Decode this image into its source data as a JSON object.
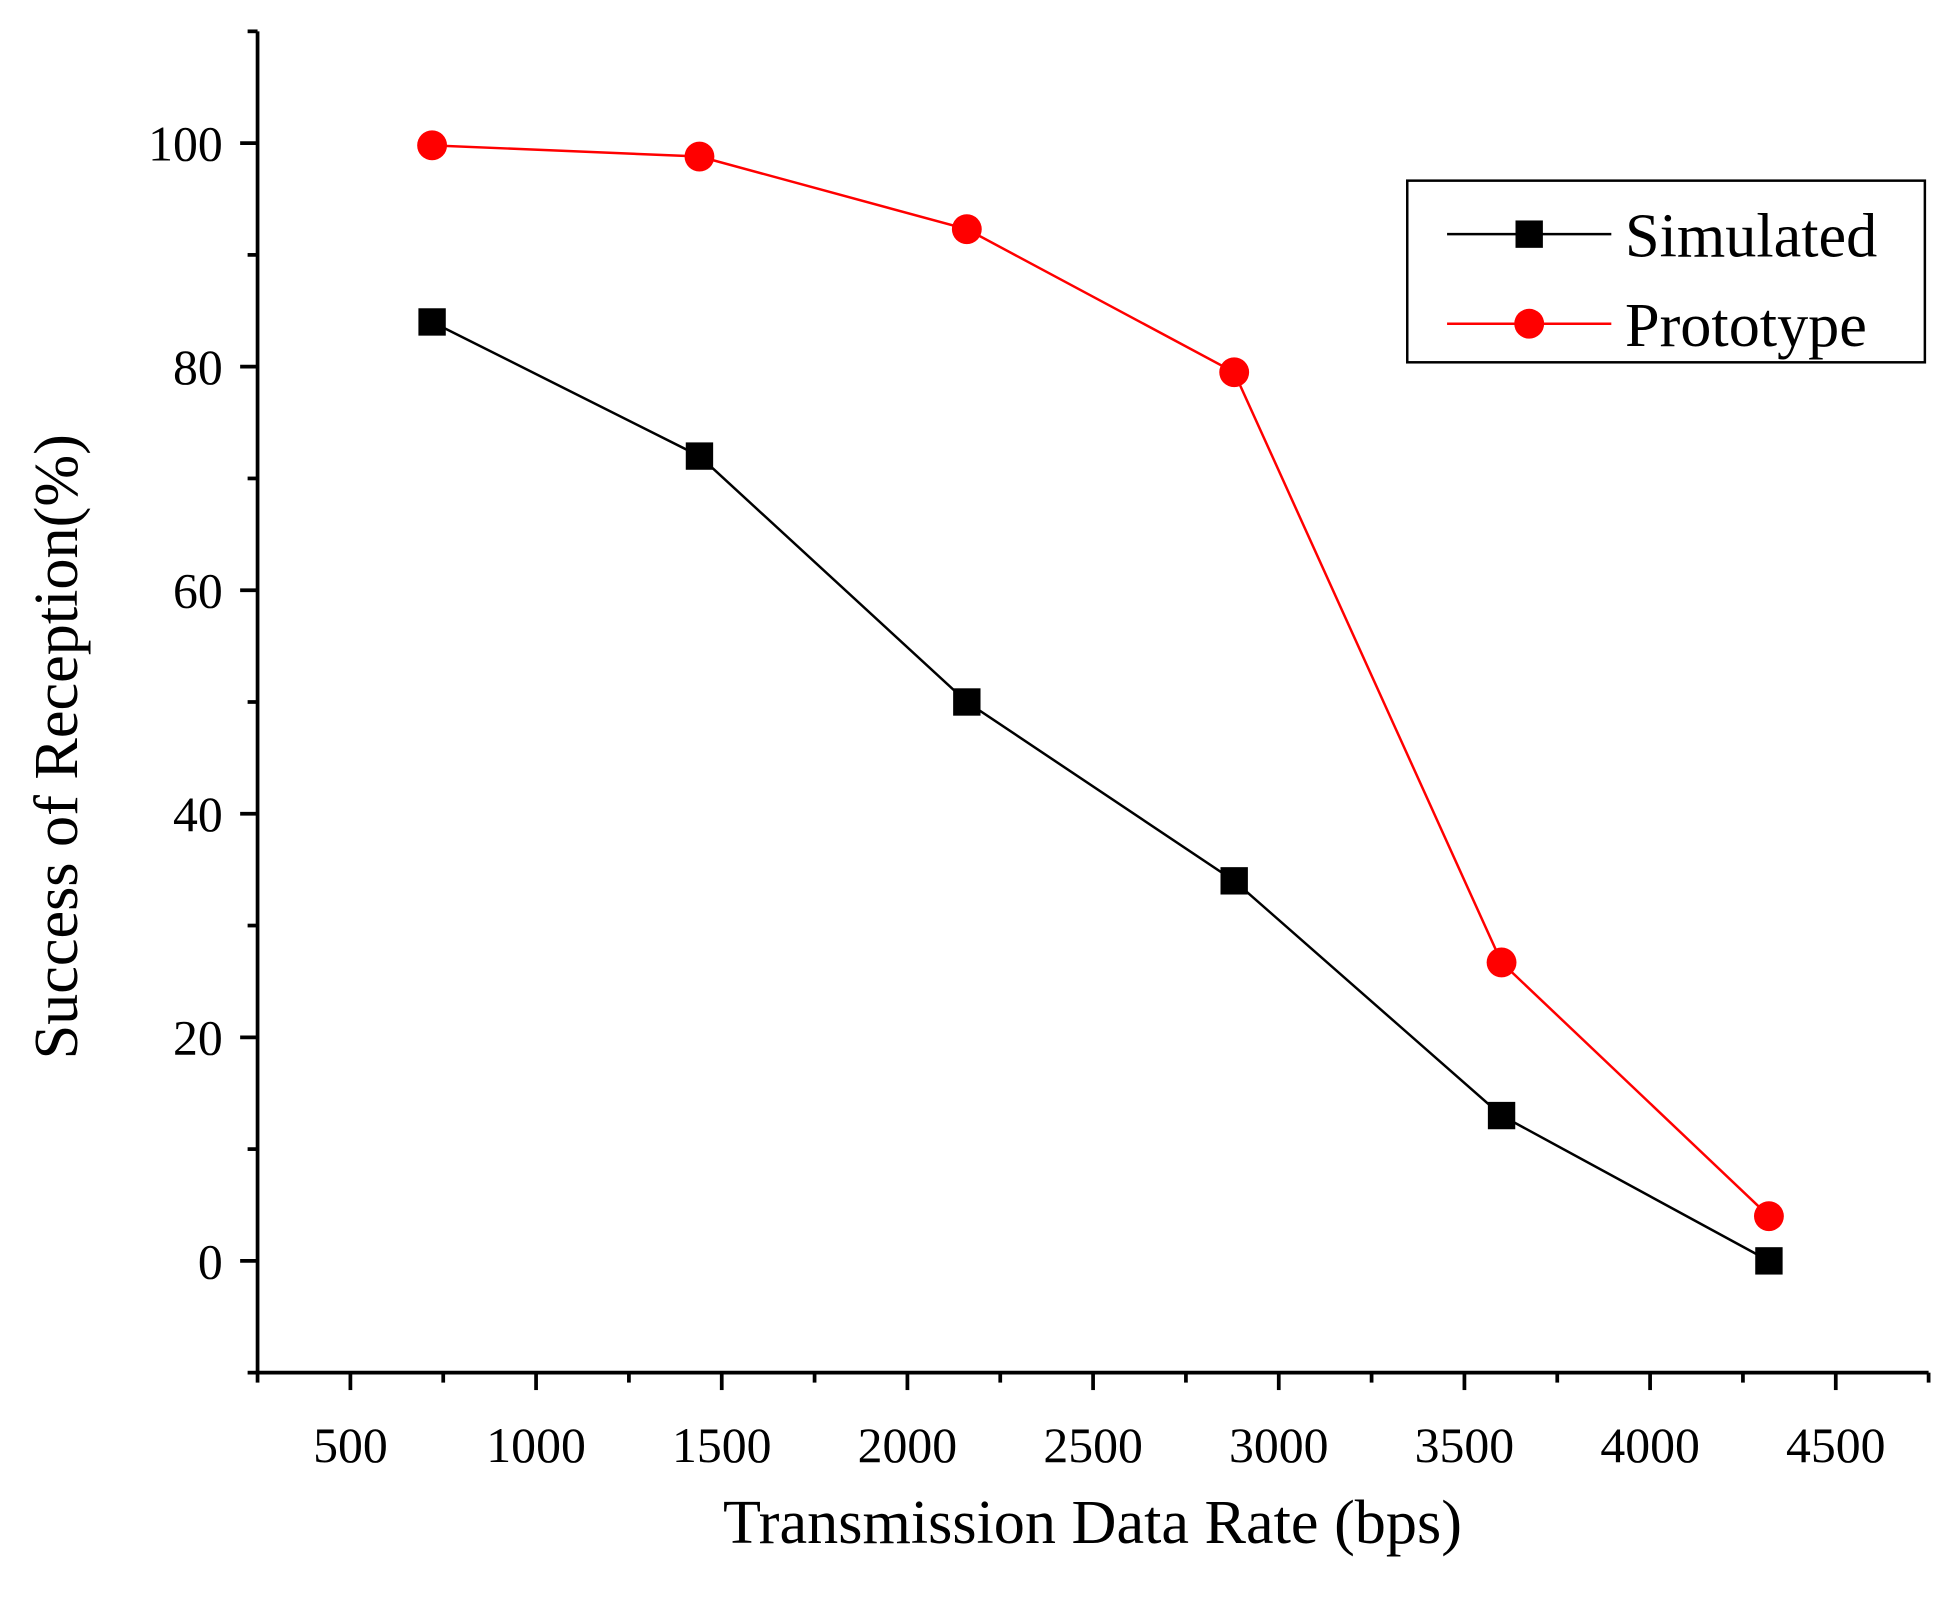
{
  "chart_data": {
    "type": "line",
    "title": "",
    "xlabel": "Transmission Data Rate (bps)",
    "ylabel": "Success of Reception(%)",
    "xlim": [
      250,
      4750
    ],
    "ylim": [
      -10,
      110
    ],
    "xticks": [
      500,
      1000,
      1500,
      2000,
      2500,
      3000,
      3500,
      4000,
      4500
    ],
    "yticks": [
      0,
      20,
      40,
      60,
      80,
      100
    ],
    "grid": false,
    "legend_position": "top-right",
    "x": [
      720,
      1440,
      2160,
      2880,
      3600,
      4320
    ],
    "series": [
      {
        "name": "Simulated",
        "color": "#000000",
        "marker": "square",
        "values": [
          84,
          72,
          50,
          34,
          13,
          0
        ]
      },
      {
        "name": "Prototype",
        "color": "#ff0000",
        "marker": "circle",
        "values": [
          99.8,
          98.8,
          92.3,
          79.5,
          26.7,
          4
        ]
      }
    ]
  }
}
